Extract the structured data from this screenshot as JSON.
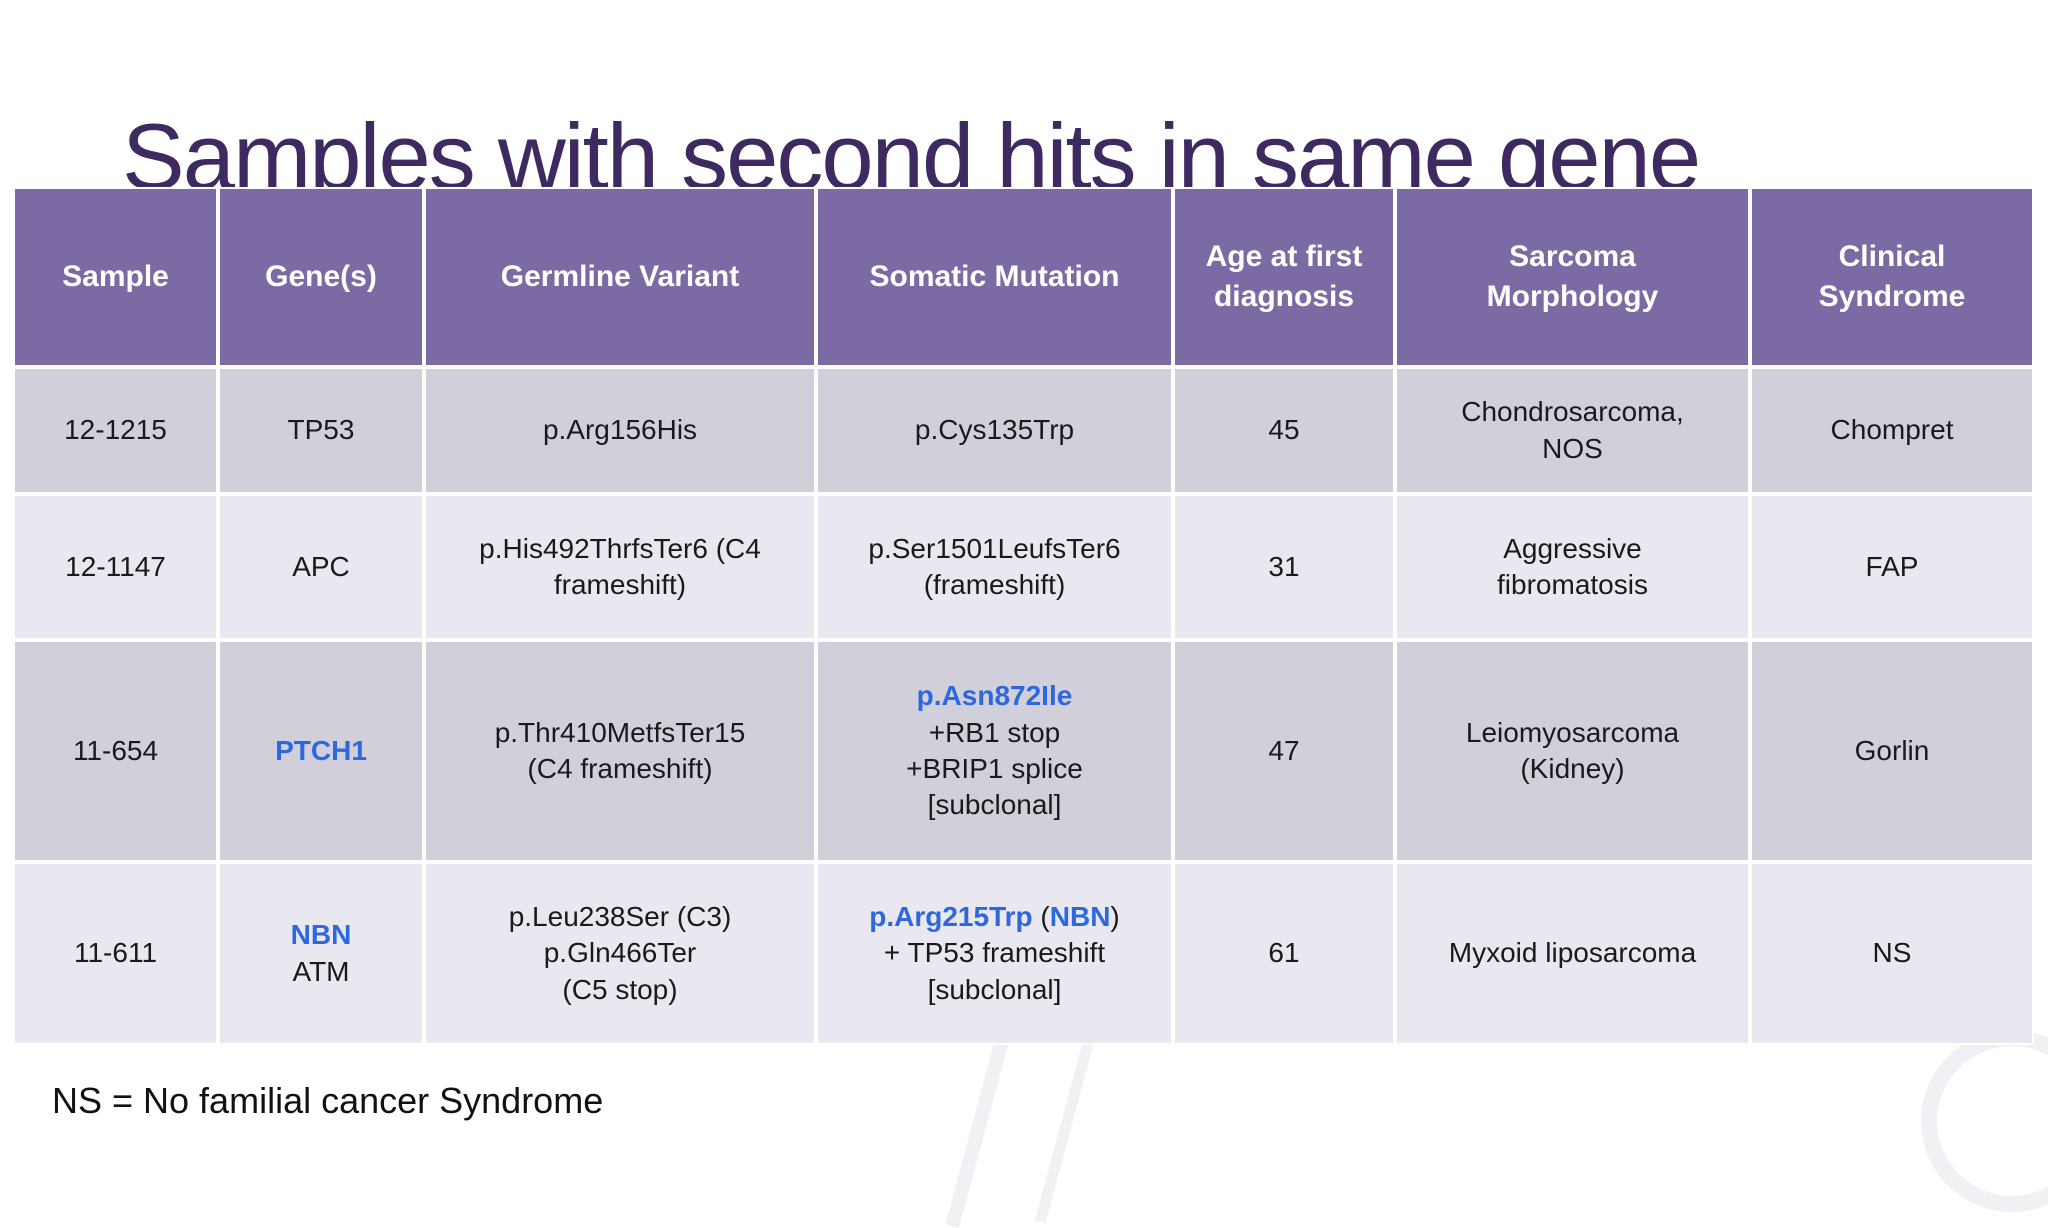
{
  "slide": {
    "title": "Samples with second hits in same gene",
    "footnote": "NS = No familial cancer Syndrome"
  },
  "colors": {
    "header_bg": "#7C6AA4",
    "band_dark": "#D1CFD9",
    "band_light": "#E9E7F0",
    "title_text": "#3E2A60",
    "accent_blue": "#2D68DF",
    "gridline": "#FFFFFF"
  },
  "table": {
    "headers": [
      {
        "lines": [
          "Sample"
        ]
      },
      {
        "lines": [
          "Gene(s)"
        ]
      },
      {
        "lines": [
          "Germline Variant"
        ]
      },
      {
        "lines": [
          "Somatic Mutation"
        ]
      },
      {
        "lines": [
          "Age at first",
          "diagnosis"
        ]
      },
      {
        "lines": [
          "Sarcoma",
          "Morphology"
        ]
      },
      {
        "lines": [
          "Clinical",
          "Syndrome"
        ]
      }
    ],
    "rows": [
      {
        "band": "dark",
        "cells": [
          {
            "lines": [
              [
                {
                  "t": "12-1215"
                }
              ]
            ]
          },
          {
            "lines": [
              [
                {
                  "t": "TP53"
                }
              ]
            ]
          },
          {
            "lines": [
              [
                {
                  "t": "p.Arg156His"
                }
              ]
            ]
          },
          {
            "lines": [
              [
                {
                  "t": "p.Cys135Trp"
                }
              ]
            ]
          },
          {
            "lines": [
              [
                {
                  "t": "45"
                }
              ]
            ]
          },
          {
            "lines": [
              [
                {
                  "t": "Chondrosarcoma,"
                }
              ],
              [
                {
                  "t": "NOS"
                }
              ]
            ]
          },
          {
            "lines": [
              [
                {
                  "t": "Chompret"
                }
              ]
            ]
          }
        ]
      },
      {
        "band": "light",
        "cells": [
          {
            "lines": [
              [
                {
                  "t": "12-1147"
                }
              ]
            ]
          },
          {
            "lines": [
              [
                {
                  "t": "APC"
                }
              ]
            ]
          },
          {
            "lines": [
              [
                {
                  "t": "p.His492ThrfsTer6 (C4"
                }
              ],
              [
                {
                  "t": "frameshift)"
                }
              ]
            ]
          },
          {
            "lines": [
              [
                {
                  "t": "p.Ser1501LeufsTer6"
                }
              ],
              [
                {
                  "t": "(frameshift)"
                }
              ]
            ]
          },
          {
            "lines": [
              [
                {
                  "t": "31"
                }
              ]
            ]
          },
          {
            "lines": [
              [
                {
                  "t": "Aggressive"
                }
              ],
              [
                {
                  "t": "fibromatosis"
                }
              ]
            ]
          },
          {
            "lines": [
              [
                {
                  "t": "FAP"
                }
              ]
            ]
          }
        ]
      },
      {
        "band": "dark",
        "cells": [
          {
            "lines": [
              [
                {
                  "t": "11-654"
                }
              ]
            ]
          },
          {
            "lines": [
              [
                {
                  "t": "PTCH1",
                  "c": "accent"
                }
              ]
            ]
          },
          {
            "lines": [
              [
                {
                  "t": "p.Thr410MetfsTer15"
                }
              ],
              [
                {
                  "t": "(C4 frameshift)"
                }
              ]
            ]
          },
          {
            "lines": [
              [
                {
                  "t": "p.Asn872Ile",
                  "c": "accent"
                }
              ],
              [
                {
                  "t": "+RB1 stop"
                }
              ],
              [
                {
                  "t": "+BRIP1 splice"
                }
              ],
              [
                {
                  "t": "[subclonal]"
                }
              ]
            ]
          },
          {
            "lines": [
              [
                {
                  "t": "47"
                }
              ]
            ]
          },
          {
            "lines": [
              [
                {
                  "t": "Leiomyosarcoma"
                }
              ],
              [
                {
                  "t": "(Kidney)"
                }
              ]
            ]
          },
          {
            "lines": [
              [
                {
                  "t": "Gorlin"
                }
              ]
            ]
          }
        ]
      },
      {
        "band": "light",
        "cells": [
          {
            "lines": [
              [
                {
                  "t": "11-611"
                }
              ]
            ]
          },
          {
            "lines": [
              [
                {
                  "t": "NBN",
                  "c": "accent"
                }
              ],
              [
                {
                  "t": "ATM"
                }
              ]
            ]
          },
          {
            "lines": [
              [
                {
                  "t": "p.Leu238Ser (C3)"
                }
              ],
              [
                {
                  "t": "p.Gln466Ter"
                }
              ],
              [
                {
                  "t": "(C5 stop)"
                }
              ]
            ]
          },
          {
            "lines": [
              [
                {
                  "t": "p.Arg215Trp",
                  "c": "accent"
                },
                {
                  "t": " ("
                },
                {
                  "t": "NBN",
                  "c": "accent"
                },
                {
                  "t": ")"
                }
              ],
              [
                {
                  "t": "+ TP53 frameshift"
                }
              ],
              [
                {
                  "t": "[subclonal]"
                }
              ]
            ]
          },
          {
            "lines": [
              [
                {
                  "t": "61"
                }
              ]
            ]
          },
          {
            "lines": [
              [
                {
                  "t": "Myxoid liposarcoma"
                }
              ]
            ]
          },
          {
            "lines": [
              [
                {
                  "t": "NS"
                }
              ]
            ]
          }
        ]
      }
    ]
  }
}
